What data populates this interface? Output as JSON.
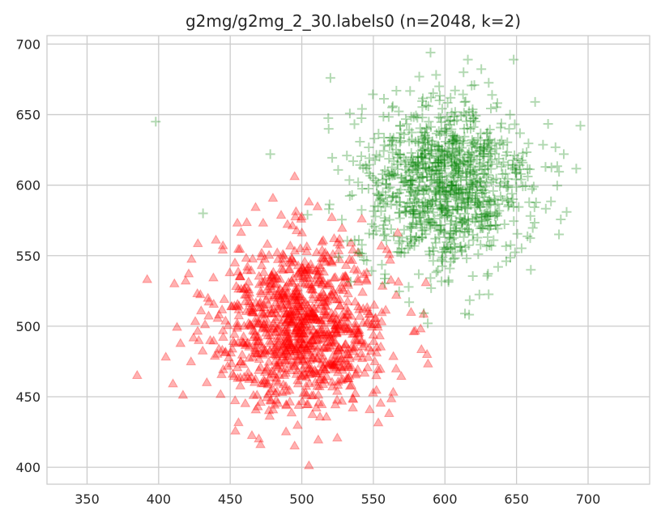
{
  "chart_data": {
    "type": "scatter",
    "title": "g2mg/g2mg_2_30.labels0 (n=2048, k=2)",
    "xlabel": "",
    "ylabel": "",
    "xlim": [
      322,
      743
    ],
    "ylim": [
      388,
      706
    ],
    "xticks": [
      350,
      400,
      450,
      500,
      550,
      600,
      650,
      700
    ],
    "yticks": [
      400,
      450,
      500,
      550,
      600,
      650,
      700
    ],
    "grid": true,
    "legend": "none",
    "n": 2048,
    "k": 2,
    "series": [
      {
        "marker": "triangle",
        "color": "#ff0000",
        "alpha": 0.3,
        "count": 1024,
        "center": [
          500,
          500
        ],
        "std": [
          30,
          30
        ],
        "outliers": [
          [
            385,
            465
          ],
          [
            392,
            533
          ],
          [
            405,
            478
          ],
          [
            410,
            459
          ],
          [
            417,
            451
          ],
          [
            411,
            530
          ],
          [
            421,
            537
          ],
          [
            440,
            561
          ],
          [
            495,
            606
          ],
          [
            505,
            588
          ],
          [
            490,
            572
          ],
          [
            473,
            573
          ],
          [
            455,
            573
          ],
          [
            505,
            401
          ],
          [
            470,
            420
          ],
          [
            489,
            425
          ],
          [
            495,
            415
          ],
          [
            561,
            438
          ],
          [
            583,
            498
          ],
          [
            567,
            566
          ],
          [
            521,
            577
          ],
          [
            525,
            559
          ]
        ]
      },
      {
        "marker": "plus",
        "color": "#008000",
        "alpha": 0.3,
        "count": 1024,
        "center": [
          600,
          600
        ],
        "std": [
          30,
          30
        ],
        "outliers": [
          [
            520,
            676
          ],
          [
            616,
            689
          ],
          [
            648,
            689
          ],
          [
            613,
            680
          ],
          [
            663,
            659
          ],
          [
            683,
            622
          ],
          [
            685,
            581
          ],
          [
            660,
            540
          ],
          [
            614,
            509
          ],
          [
            575,
            517
          ],
          [
            588,
            502
          ],
          [
            519,
            583
          ],
          [
            504,
            579
          ],
          [
            431,
            580
          ],
          [
            398,
            645
          ],
          [
            478,
            622
          ]
        ]
      }
    ]
  }
}
